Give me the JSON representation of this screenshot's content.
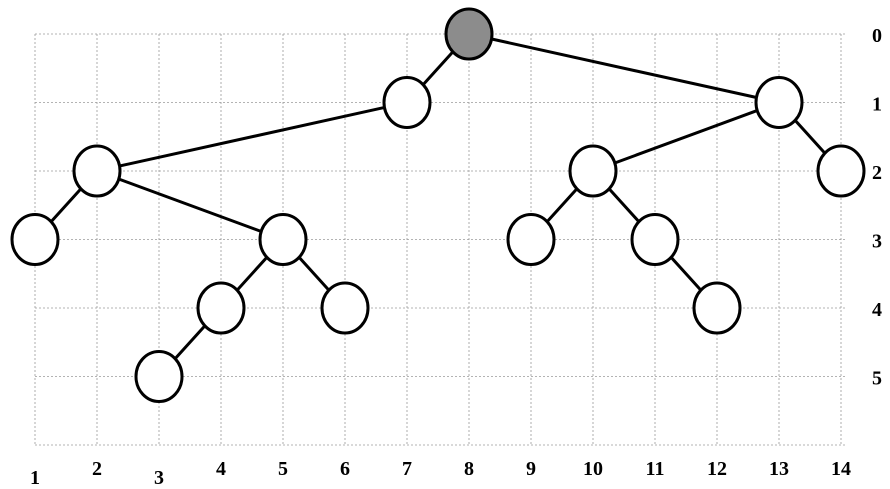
{
  "diagram": {
    "type": "tree-on-grid",
    "x_labels": [
      "1",
      "2",
      "3",
      "4",
      "5",
      "6",
      "7",
      "8",
      "9",
      "10",
      "11",
      "12",
      "13",
      "14"
    ],
    "y_labels": [
      "0",
      "1",
      "2",
      "3",
      "4",
      "5"
    ],
    "root_fill": "#8c8c8c",
    "node_fill": "#ffffff",
    "nodes": [
      {
        "id": "n8_0",
        "x": 8,
        "y": 0,
        "root": true
      },
      {
        "id": "n7_1",
        "x": 7,
        "y": 1
      },
      {
        "id": "n13_1",
        "x": 13,
        "y": 1
      },
      {
        "id": "n2_2",
        "x": 2,
        "y": 2
      },
      {
        "id": "n10_2",
        "x": 10,
        "y": 2
      },
      {
        "id": "n14_2",
        "x": 14,
        "y": 2
      },
      {
        "id": "n1_3",
        "x": 1,
        "y": 3
      },
      {
        "id": "n5_3",
        "x": 5,
        "y": 3
      },
      {
        "id": "n9_3",
        "x": 9,
        "y": 3
      },
      {
        "id": "n11_3",
        "x": 11,
        "y": 3
      },
      {
        "id": "n4_4",
        "x": 4,
        "y": 4
      },
      {
        "id": "n6_4",
        "x": 6,
        "y": 4
      },
      {
        "id": "n12_4",
        "x": 12,
        "y": 4
      },
      {
        "id": "n3_5",
        "x": 3,
        "y": 5
      }
    ],
    "edges": [
      [
        "n8_0",
        "n7_1"
      ],
      [
        "n8_0",
        "n13_1"
      ],
      [
        "n7_1",
        "n2_2"
      ],
      [
        "n13_1",
        "n10_2"
      ],
      [
        "n13_1",
        "n14_2"
      ],
      [
        "n2_2",
        "n1_3"
      ],
      [
        "n2_2",
        "n5_3"
      ],
      [
        "n10_2",
        "n9_3"
      ],
      [
        "n10_2",
        "n11_3"
      ],
      [
        "n5_3",
        "n4_4"
      ],
      [
        "n5_3",
        "n6_4"
      ],
      [
        "n11_3",
        "n12_4"
      ],
      [
        "n4_4",
        "n3_5"
      ]
    ]
  }
}
